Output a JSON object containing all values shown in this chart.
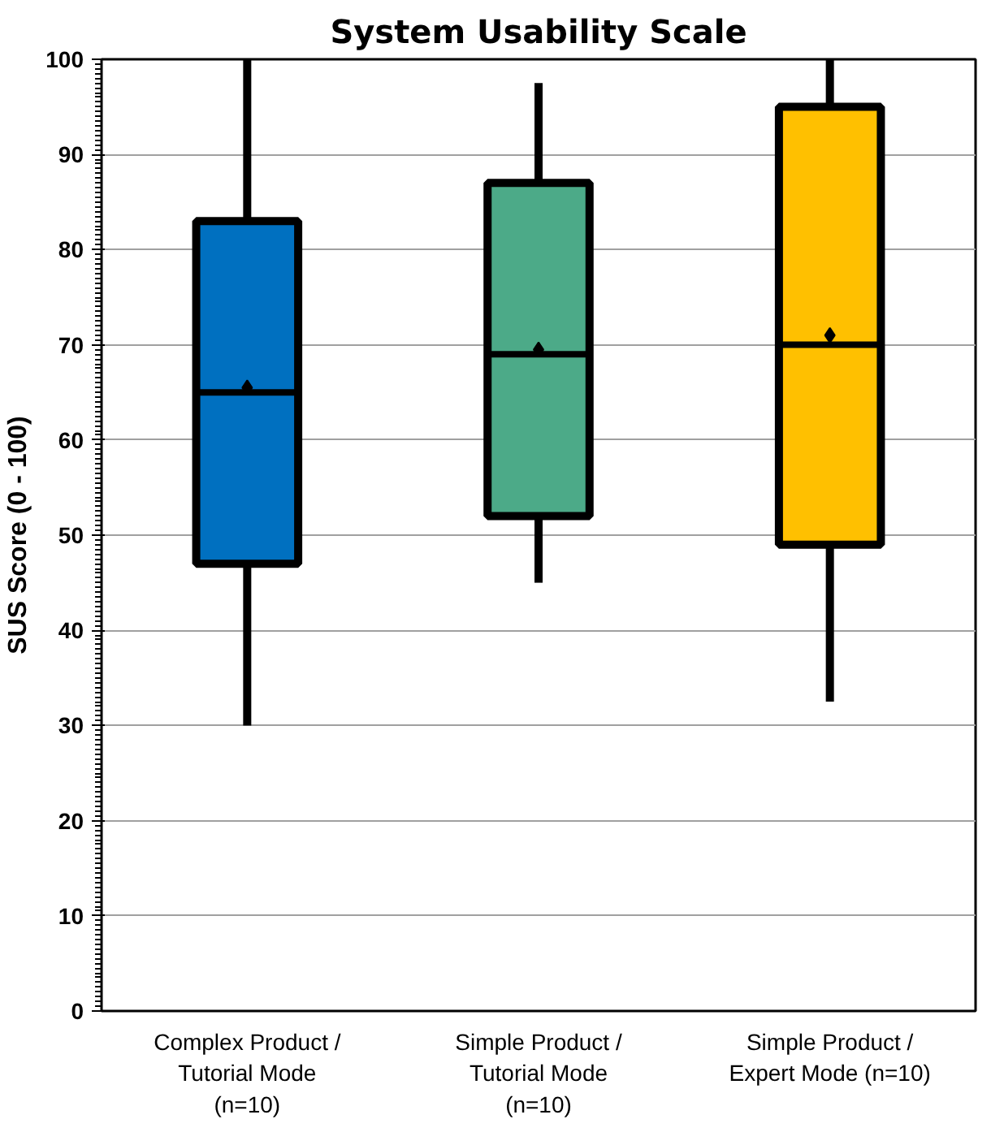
{
  "chart_data": {
    "type": "box",
    "title": "System Usability Scale",
    "ylabel": "SUS Score (0 - 100)",
    "categories": [
      "Complex Product /\nTutorial Mode\n(n=10)",
      "Simple Product /\nTutorial Mode\n(n=10)",
      "Simple Product /\nExpert Mode (n=10)"
    ],
    "colors": [
      "#0070c0",
      "#4caa88",
      "#ffc000"
    ],
    "boxes": [
      {
        "low": 30,
        "q1": 47,
        "median": 65,
        "q3": 83,
        "high": 100,
        "mean": 65.5
      },
      {
        "low": 45,
        "q1": 52,
        "median": 69,
        "q3": 87,
        "high": 97.5,
        "mean": 69.5
      },
      {
        "low": 32.5,
        "q1": 49,
        "median": 70,
        "q3": 95,
        "high": 100,
        "mean": 71
      }
    ],
    "ylim": [
      0,
      100
    ],
    "yticks": [
      0,
      10,
      20,
      30,
      40,
      50,
      60,
      70,
      80,
      90,
      100
    ],
    "grid": "y"
  }
}
